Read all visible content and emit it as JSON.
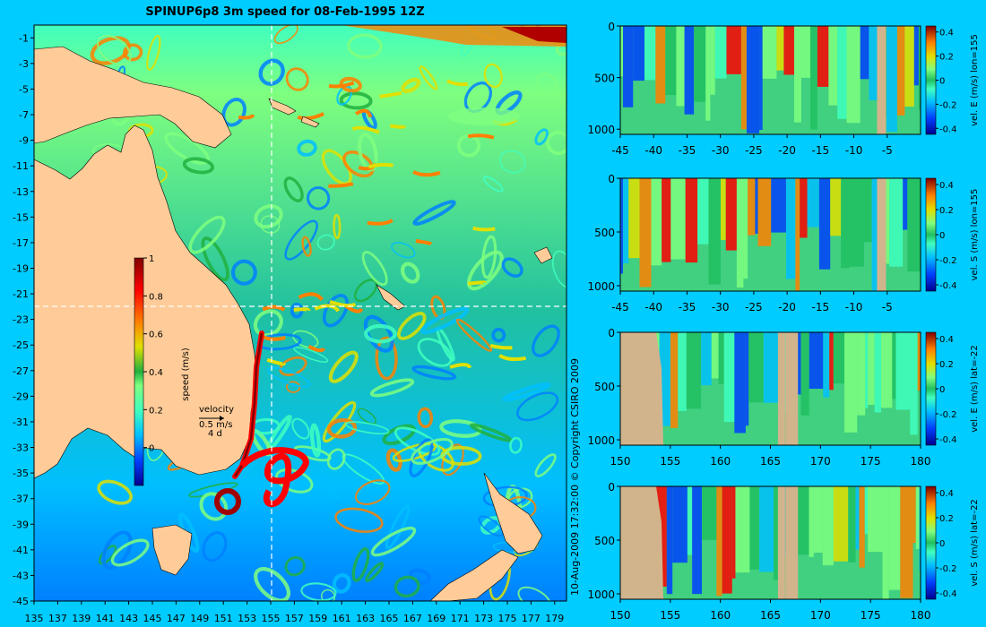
{
  "title": "SPINUP6p8 3m speed for 08-Feb-1995 12Z",
  "copyright": "10-Aug-2009 17:32:00  © Copyright CSIRO 2009",
  "colors": {
    "background": "#00CCFF",
    "land": "#FFCC99",
    "section_land": "#D2B48C",
    "crosshair": "#FFFFFF",
    "colormap": [
      "#00008F",
      "#0040FF",
      "#00BFFF",
      "#40FFBF",
      "#7FFF7F",
      "#20B040",
      "#E0E000",
      "#FF8000",
      "#FF0000",
      "#800000"
    ]
  },
  "map": {
    "xticks": [
      "135",
      "137",
      "139",
      "141",
      "143",
      "145",
      "147",
      "149",
      "151",
      "153",
      "155",
      "157",
      "159",
      "161",
      "163",
      "165",
      "167",
      "169",
      "171",
      "173",
      "175",
      "177",
      "179"
    ],
    "yticks": [
      "-1",
      "-3",
      "-5",
      "-7",
      "-9",
      "-11",
      "-13",
      "-15",
      "-17",
      "-19",
      "-21",
      "-23",
      "-25",
      "-27",
      "-29",
      "-31",
      "-33",
      "-35",
      "-37",
      "-39",
      "-41",
      "-43",
      "-45"
    ],
    "xlim": [
      135,
      180
    ],
    "ylim": [
      -45,
      0
    ],
    "section_lon": 155,
    "section_lat": -22,
    "colorbar": {
      "label": "speed (m/s)",
      "ticks": [
        "1",
        "0.8",
        "0.6",
        "0.4",
        "0.2",
        "0"
      ],
      "range": [
        -0.2,
        1
      ]
    },
    "velocity_key": {
      "label": "velocity",
      "speed": "0.5 m/s",
      "days": "4 d"
    }
  },
  "chart_data": [
    {
      "type": "heatmap",
      "ylabel": "vel. E (m/s) lon=155",
      "xticks": [
        "-45",
        "-40",
        "-35",
        "-30",
        "-25",
        "-20",
        "-15",
        "-10",
        "-5"
      ],
      "yticks": [
        "0",
        "500",
        "1000"
      ],
      "xlim": [
        -45,
        0
      ],
      "ylim": [
        1050,
        0
      ],
      "colorbar_ticks": [
        "0.4",
        "0.2",
        "0",
        "-0.2",
        "-0.4"
      ],
      "color_range": [
        -0.45,
        0.45
      ]
    },
    {
      "type": "heatmap",
      "ylabel": "vel. S (m/s) lon=155",
      "xticks": [
        "-45",
        "-40",
        "-35",
        "-30",
        "-25",
        "-20",
        "-15",
        "-10",
        "-5"
      ],
      "yticks": [
        "0",
        "500",
        "1000"
      ],
      "xlim": [
        -45,
        0
      ],
      "ylim": [
        1050,
        0
      ],
      "colorbar_ticks": [
        "0.4",
        "0.2",
        "0",
        "-0.2",
        "-0.4"
      ],
      "color_range": [
        -0.45,
        0.45
      ]
    },
    {
      "type": "heatmap",
      "ylabel": "vel. E (m/s) lat=-22",
      "xticks": [
        "150",
        "155",
        "160",
        "165",
        "170",
        "175",
        "180"
      ],
      "yticks": [
        "0",
        "500",
        "1000"
      ],
      "xlim": [
        150,
        180
      ],
      "ylim": [
        1050,
        0
      ],
      "colorbar_ticks": [
        "0.4",
        "0.2",
        "0",
        "-0.2",
        "-0.4"
      ],
      "color_range": [
        -0.45,
        0.45
      ]
    },
    {
      "type": "heatmap",
      "ylabel": "vel. S (m/s) lat=-22",
      "xticks": [
        "150",
        "155",
        "160",
        "165",
        "170",
        "175",
        "180"
      ],
      "yticks": [
        "0",
        "500",
        "1000"
      ],
      "xlim": [
        150,
        180
      ],
      "ylim": [
        1050,
        0
      ],
      "colorbar_ticks": [
        "0.4",
        "0.2",
        "0",
        "-0.2",
        "-0.4"
      ],
      "color_range": [
        -0.45,
        0.45
      ]
    }
  ]
}
